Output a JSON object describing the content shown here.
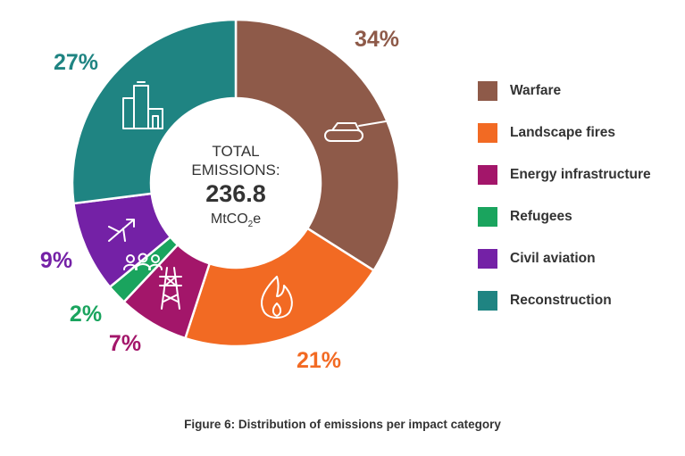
{
  "chart_data": {
    "type": "pie",
    "variant": "donut",
    "center": {
      "line1": "TOTAL",
      "line2": "EMISSIONS:",
      "value": "236.8",
      "unit_main": "MtCO",
      "unit_sub": "2",
      "unit_end": "e"
    },
    "categories": [
      "Warfare",
      "Landscape fires",
      "Energy infrastructure",
      "Refugees",
      "Civil aviation",
      "Reconstruction"
    ],
    "values": [
      34,
      21,
      7,
      2,
      9,
      27
    ],
    "labels": [
      "34%",
      "21%",
      "7%",
      "2%",
      "9%",
      "27%"
    ],
    "colors": [
      "#8E5A49",
      "#F26A23",
      "#A3166A",
      "#1AA45E",
      "#7421A6",
      "#1F8482"
    ],
    "icons": [
      "tank-icon",
      "fire-icon",
      "power-pylon-icon",
      "people-icon",
      "airplane-icon",
      "buildings-icon"
    ],
    "legend_position": "right",
    "caption": "Figure 6: Distribution of emissions per impact category"
  }
}
